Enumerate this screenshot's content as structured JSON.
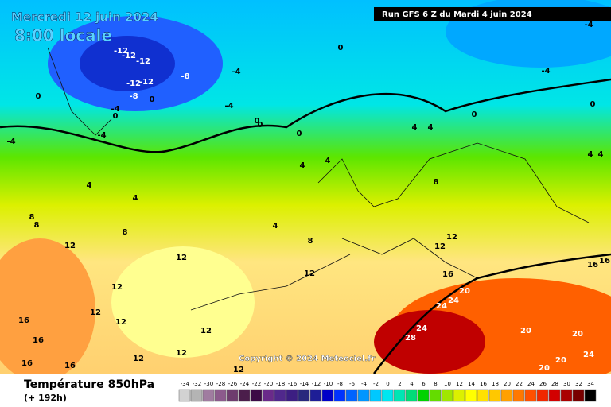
{
  "header": {
    "date": "Mercredi 12 juin 2024",
    "time": "8:00 locale",
    "run": "Run GFS 6 Z du Mardi 4 juin 2024",
    "copyright": "Copyright © 2024 Meteociel.fr"
  },
  "footer": {
    "parameter": "Température 850hPa",
    "lead": "(+ 192h)"
  },
  "scale": {
    "values": [
      -34,
      -32,
      -30,
      -28,
      -26,
      -24,
      -22,
      -20,
      -18,
      -16,
      -14,
      -12,
      -10,
      -8,
      -6,
      -4,
      -2,
      0,
      2,
      4,
      6,
      8,
      10,
      12,
      14,
      16,
      18,
      20,
      22,
      24,
      26,
      28,
      30,
      32,
      34
    ],
    "colors": [
      "#d2d2d2",
      "#b4b4b4",
      "#a07ca0",
      "#8c5a8c",
      "#6e3c6e",
      "#4b1e4b",
      "#3c0a46",
      "#6a2a8a",
      "#50288c",
      "#3c1e82",
      "#28287d",
      "#1e1e96",
      "#0000c8",
      "#0032ff",
      "#0064ff",
      "#0096ff",
      "#00c8ff",
      "#00e6f0",
      "#00e6b4",
      "#00dc78",
      "#00d200",
      "#64dc00",
      "#a0e600",
      "#dcf000",
      "#ffff00",
      "#ffe100",
      "#ffc800",
      "#ffa000",
      "#ff7800",
      "#ff5000",
      "#f02800",
      "#d20000",
      "#aa0000",
      "#780000",
      "#000000"
    ]
  },
  "map_labels": [
    -12,
    -12,
    -12,
    -12,
    -12,
    -8,
    -8,
    -4,
    -4,
    -4,
    -4,
    -4,
    -4,
    -4,
    0,
    0,
    0,
    0,
    0,
    0,
    0,
    0,
    0,
    4,
    4,
    4,
    4,
    4,
    4,
    4,
    4,
    4,
    8,
    8,
    8,
    8,
    8,
    12,
    12,
    12,
    12,
    12,
    12,
    12,
    12,
    12,
    12,
    12,
    12,
    16,
    16,
    16,
    16,
    16,
    16,
    16,
    20,
    20,
    20,
    20,
    20,
    24,
    24,
    24,
    24,
    28
  ]
}
